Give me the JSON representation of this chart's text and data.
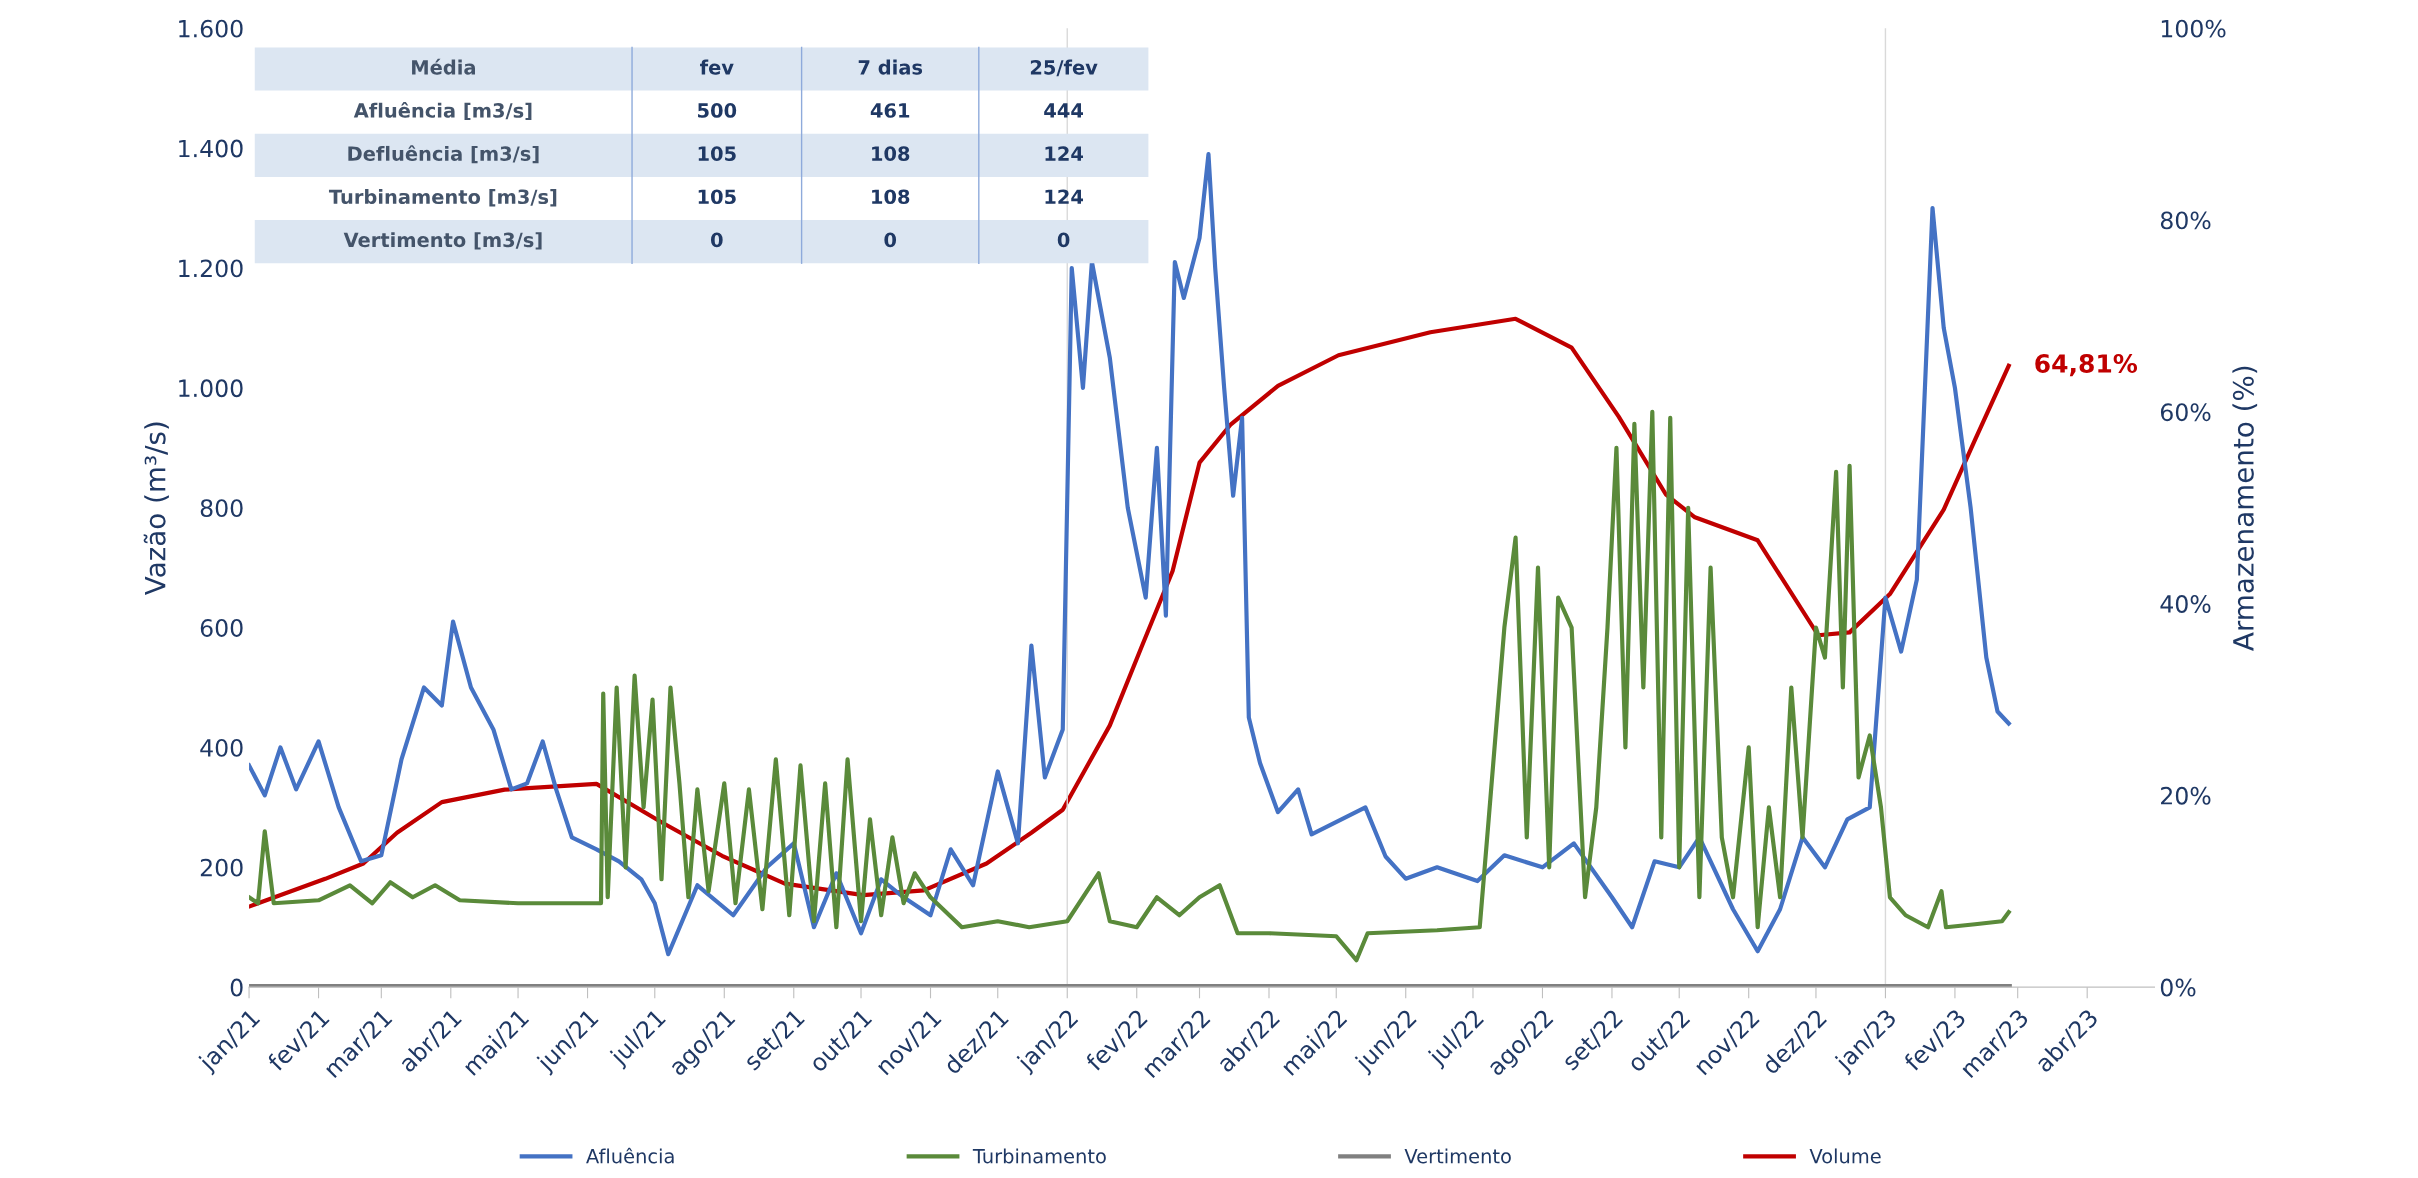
{
  "chart_data": {
    "type": "line",
    "ylabel": "Vazão (m³/s)",
    "y2label": "Armazenamento (%)",
    "xlim": [
      "2021-01-01",
      "2023-05-01"
    ],
    "xticks": [
      {
        "value": "2021-01-01",
        "label": "jan/21"
      },
      {
        "value": "2021-02-01",
        "label": "fev/21"
      },
      {
        "value": "2021-03-01",
        "label": "mar/21"
      },
      {
        "value": "2021-04-01",
        "label": "abr/21"
      },
      {
        "value": "2021-05-01",
        "label": "mai/21"
      },
      {
        "value": "2021-06-01",
        "label": "jun/21"
      },
      {
        "value": "2021-07-01",
        "label": "jul/21"
      },
      {
        "value": "2021-08-01",
        "label": "ago/21"
      },
      {
        "value": "2021-09-01",
        "label": "set/21"
      },
      {
        "value": "2021-10-01",
        "label": "out/21"
      },
      {
        "value": "2021-11-01",
        "label": "nov/21"
      },
      {
        "value": "2021-12-01",
        "label": "dez/21"
      },
      {
        "value": "2022-01-01",
        "label": "jan/22"
      },
      {
        "value": "2022-02-01",
        "label": "fev/22"
      },
      {
        "value": "2022-03-01",
        "label": "mar/22"
      },
      {
        "value": "2022-04-01",
        "label": "abr/22"
      },
      {
        "value": "2022-05-01",
        "label": "mai/22"
      },
      {
        "value": "2022-06-01",
        "label": "jun/22"
      },
      {
        "value": "2022-07-01",
        "label": "jul/22"
      },
      {
        "value": "2022-08-01",
        "label": "ago/22"
      },
      {
        "value": "2022-09-01",
        "label": "set/22"
      },
      {
        "value": "2022-10-01",
        "label": "out/22"
      },
      {
        "value": "2022-11-01",
        "label": "nov/22"
      },
      {
        "value": "2022-12-01",
        "label": "dez/22"
      },
      {
        "value": "2023-01-01",
        "label": "jan/23"
      },
      {
        "value": "2023-02-01",
        "label": "fev/23"
      },
      {
        "value": "2023-03-01",
        "label": "mar/23"
      },
      {
        "value": "2023-04-01",
        "label": "abr/23"
      }
    ],
    "ylim": [
      0,
      1600
    ],
    "yticks": [
      0,
      200,
      400,
      600,
      800,
      {
        "value": 1000,
        "label": "1.000"
      },
      {
        "value": 1200,
        "label": "1.200"
      },
      {
        "value": 1400,
        "label": "1.400"
      },
      {
        "value": 1600,
        "label": "1.600"
      }
    ],
    "y2lim": [
      0,
      100
    ],
    "y2ticks": [
      {
        "value": 0,
        "label": "0%"
      },
      {
        "value": 20,
        "label": "20%"
      },
      {
        "value": 40,
        "label": "40%"
      },
      {
        "value": 60,
        "label": "60%"
      },
      {
        "value": 80,
        "label": "80%"
      },
      {
        "value": 100,
        "label": "100%"
      }
    ],
    "grid": false,
    "legend": "bottom",
    "marker": "none",
    "line_style": "solid",
    "ref_lines": [
      {
        "axis": "x",
        "value": "2022-01-01",
        "label": null,
        "color": "#d9d9d9"
      },
      {
        "axis": "x",
        "value": "2023-01-01",
        "label": null,
        "color": "#d9d9d9"
      }
    ],
    "series": [
      {
        "name": "Afluência",
        "color": "#4472c4",
        "x": [
          "2021-01-01",
          "2021-01-08",
          "2021-01-15",
          "2021-01-22",
          "2021-02-01",
          "2021-02-10",
          "2021-02-20",
          "2021-03-01",
          "2021-03-10",
          "2021-03-20",
          "2021-03-28",
          "2021-04-02",
          "2021-04-10",
          "2021-04-20",
          "2021-04-28",
          "2021-05-05",
          "2021-05-12",
          "2021-05-18",
          "2021-05-25",
          "2021-06-05",
          "2021-06-15",
          "2021-06-25",
          "2021-07-01",
          "2021-07-07",
          "2021-07-20",
          "2021-08-05",
          "2021-08-20",
          "2021-09-01",
          "2021-09-10",
          "2021-09-20",
          "2021-10-01",
          "2021-10-10",
          "2021-10-20",
          "2021-11-01",
          "2021-11-10",
          "2021-11-20",
          "2021-12-01",
          "2021-12-10",
          "2021-12-16",
          "2021-12-22",
          "2021-12-30",
          "2022-01-03",
          "2022-01-08",
          "2022-01-12",
          "2022-01-20",
          "2022-01-28",
          "2022-02-05",
          "2022-02-10",
          "2022-02-14",
          "2022-02-18",
          "2022-02-22",
          "2022-03-01",
          "2022-03-05",
          "2022-03-08",
          "2022-03-12",
          "2022-03-16",
          "2022-03-20",
          "2022-03-23",
          "2022-03-28",
          "2022-04-05",
          "2022-04-14",
          "2022-04-20",
          "2022-05-14",
          "2022-05-23",
          "2022-06-01",
          "2022-06-15",
          "2022-07-03",
          "2022-07-15",
          "2022-08-01",
          "2022-08-15",
          "2022-09-01",
          "2022-09-10",
          "2022-09-20",
          "2022-10-01",
          "2022-10-10",
          "2022-10-25",
          "2022-11-05",
          "2022-11-15",
          "2022-11-25",
          "2022-12-05",
          "2022-12-15",
          "2022-12-25",
          "2023-01-01",
          "2023-01-08",
          "2023-01-15",
          "2023-01-22",
          "2023-01-27",
          "2023-02-01",
          "2023-02-08",
          "2023-02-15",
          "2023-02-20",
          "2023-02-25"
        ],
        "values": [
          370,
          320,
          400,
          330,
          410,
          300,
          210,
          220,
          380,
          500,
          470,
          610,
          500,
          430,
          330,
          340,
          410,
          330,
          250,
          230,
          210,
          180,
          140,
          55,
          170,
          120,
          200,
          240,
          100,
          190,
          90,
          180,
          150,
          120,
          230,
          170,
          360,
          240,
          570,
          350,
          430,
          1200,
          1000,
          1210,
          1050,
          800,
          650,
          900,
          620,
          1210,
          1150,
          1250,
          1390,
          1200,
          1000,
          820,
          950,
          450,
          374,
          292,
          330,
          255,
          300,
          218,
          181,
          200,
          177,
          220,
          200,
          240,
          150,
          100,
          210,
          200,
          250,
          130,
          60,
          130,
          250,
          200,
          280,
          300,
          650,
          560,
          680,
          1300,
          1100,
          1000,
          800,
          550,
          460,
          440
        ]
      },
      {
        "name": "Turbinamento",
        "color": "#5a8a3a",
        "x": [
          "2021-01-01",
          "2021-01-05",
          "2021-01-08",
          "2021-01-12",
          "2021-02-01",
          "2021-02-15",
          "2021-02-25",
          "2021-03-05",
          "2021-03-15",
          "2021-03-25",
          "2021-04-05",
          "2021-05-01",
          "2021-06-01",
          "2021-06-07",
          "2021-06-08",
          "2021-06-10",
          "2021-06-14",
          "2021-06-18",
          "2021-06-22",
          "2021-06-26",
          "2021-06-30",
          "2021-07-04",
          "2021-07-08",
          "2021-07-12",
          "2021-07-16",
          "2021-07-20",
          "2021-07-25",
          "2021-08-01",
          "2021-08-06",
          "2021-08-12",
          "2021-08-18",
          "2021-08-24",
          "2021-08-30",
          "2021-09-04",
          "2021-09-10",
          "2021-09-15",
          "2021-09-20",
          "2021-09-25",
          "2021-10-01",
          "2021-10-05",
          "2021-10-10",
          "2021-10-15",
          "2021-10-20",
          "2021-10-25",
          "2021-11-01",
          "2021-11-15",
          "2021-12-01",
          "2021-12-15",
          "2022-01-01",
          "2022-01-15",
          "2022-01-20",
          "2022-02-01",
          "2022-02-10",
          "2022-02-20",
          "2022-03-01",
          "2022-03-10",
          "2022-03-18",
          "2022-04-01",
          "2022-05-01",
          "2022-05-10",
          "2022-05-15",
          "2022-06-15",
          "2022-07-04",
          "2022-07-08",
          "2022-07-15",
          "2022-07-20",
          "2022-07-25",
          "2022-07-30",
          "2022-08-04",
          "2022-08-08",
          "2022-08-14",
          "2022-08-20",
          "2022-08-25",
          "2022-08-30",
          "2022-09-03",
          "2022-09-07",
          "2022-09-11",
          "2022-09-15",
          "2022-09-19",
          "2022-09-23",
          "2022-09-27",
          "2022-10-01",
          "2022-10-05",
          "2022-10-10",
          "2022-10-15",
          "2022-10-20",
          "2022-10-25",
          "2022-11-01",
          "2022-11-05",
          "2022-11-10",
          "2022-11-15",
          "2022-11-20",
          "2022-11-25",
          "2022-12-01",
          "2022-12-05",
          "2022-12-10",
          "2022-12-13",
          "2022-12-16",
          "2022-12-20",
          "2022-12-25",
          "2022-12-30",
          "2023-01-03",
          "2023-01-10",
          "2023-01-20",
          "2023-01-26",
          "2023-01-28",
          "2023-02-10",
          "2023-02-22",
          "2023-02-25"
        ],
        "values": [
          150,
          140,
          260,
          140,
          145,
          170,
          140,
          175,
          150,
          170,
          145,
          140,
          140,
          140,
          490,
          150,
          500,
          200,
          520,
          300,
          480,
          180,
          500,
          340,
          150,
          330,
          160,
          340,
          140,
          330,
          130,
          380,
          120,
          370,
          110,
          340,
          100,
          380,
          110,
          280,
          120,
          250,
          140,
          190,
          150,
          100,
          110,
          100,
          110,
          190,
          110,
          100,
          150,
          120,
          150,
          170,
          90,
          90,
          85,
          45,
          90,
          95,
          100,
          280,
          600,
          750,
          250,
          700,
          200,
          650,
          600,
          150,
          300,
          600,
          900,
          400,
          940,
          500,
          960,
          250,
          950,
          200,
          800,
          150,
          700,
          250,
          150,
          400,
          100,
          300,
          150,
          500,
          250,
          600,
          550,
          860,
          500,
          870,
          350,
          420,
          300,
          150,
          120,
          100,
          160,
          100,
          105,
          110,
          125
        ]
      },
      {
        "name": "Vertimento",
        "color": "#808080",
        "x": [
          "2021-01-01",
          "2023-02-25"
        ],
        "values": [
          0,
          0
        ]
      },
      {
        "name": "Volume",
        "color": "#c00000",
        "axis": "y2",
        "x": [
          "2021-01-01",
          "2021-02-04",
          "2021-02-21",
          "2021-03-08",
          "2021-03-28",
          "2021-04-25",
          "2021-06-05",
          "2021-07-04",
          "2021-07-31",
          "2021-08-28",
          "2021-10-02",
          "2021-10-29",
          "2021-11-26",
          "2021-12-16",
          "2021-12-30",
          "2022-01-20",
          "2022-02-03",
          "2022-02-17",
          "2022-03-01",
          "2022-03-15",
          "2022-04-05",
          "2022-05-02",
          "2022-06-12",
          "2022-07-20",
          "2022-08-14",
          "2022-09-04",
          "2022-09-25",
          "2022-10-08",
          "2022-11-05",
          "2022-12-02",
          "2022-12-16",
          "2023-01-03",
          "2023-01-27",
          "2023-02-10",
          "2023-02-25"
        ],
        "values": [
          8.4,
          11.3,
          12.9,
          16.1,
          19.3,
          20.6,
          21.2,
          17.2,
          13.7,
          10.8,
          9.6,
          10.1,
          12.9,
          16.1,
          18.5,
          27.3,
          35.4,
          43.4,
          54.7,
          58.7,
          62.7,
          65.9,
          68.3,
          69.7,
          66.7,
          59.5,
          51.4,
          49.0,
          46.6,
          36.7,
          37.0,
          41.0,
          49.8,
          57.1,
          64.81
        ],
        "value_labels": [
          null,
          null,
          null,
          null,
          null,
          null,
          null,
          null,
          null,
          null,
          null,
          null,
          null,
          null,
          null,
          null,
          null,
          null,
          null,
          null,
          null,
          null,
          null,
          null,
          null,
          null,
          null,
          null,
          null,
          null,
          null,
          null,
          null,
          null,
          "64,81%"
        ]
      }
    ],
    "annotations": [
      "Média",
      "fev",
      "7 dias",
      "25/fev",
      "Afluência [m3/s]",
      "500",
      "461",
      "444",
      "Defluência [m3/s]",
      "105",
      "108",
      "124",
      "Turbinamento [m3/s]",
      "105",
      "108",
      "124",
      "Vertimento [m3/s]",
      "0",
      "0",
      "0"
    ]
  }
}
